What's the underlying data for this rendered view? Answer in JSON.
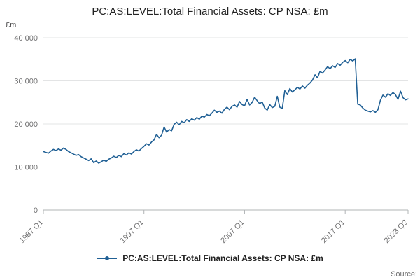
{
  "title": "PC:AS:LEVEL:Total Financial Assets: CP NSA: £m",
  "y_axis_unit_label": "£m",
  "source_label": "Source:",
  "legend": {
    "series_label": "PC:AS:LEVEL:Total Financial Assets: CP NSA: £m",
    "marker_color": "#206095"
  },
  "chart_data": {
    "type": "line",
    "title": "PC:AS:LEVEL:Total Financial Assets: CP NSA: £m",
    "xlabel": "",
    "ylabel": "£m",
    "ylim": [
      0,
      40000
    ],
    "grid": "horizontal",
    "legend_position": "bottom-center",
    "line_color": "#206095",
    "x_start": "1987 Q1",
    "x_end": "2023 Q2",
    "x_frequency": "quarterly",
    "y_ticks": [
      {
        "value": 0,
        "label": "0"
      },
      {
        "value": 10000,
        "label": "10 000"
      },
      {
        "value": 20000,
        "label": "20 000"
      },
      {
        "value": 30000,
        "label": "30 000"
      },
      {
        "value": 40000,
        "label": "40 000"
      }
    ],
    "x_ticks": [
      {
        "index": 0,
        "label": "1987 Q1"
      },
      {
        "index": 40,
        "label": "1997 Q1"
      },
      {
        "index": 80,
        "label": "2007 Q1"
      },
      {
        "index": 120,
        "label": "2017 Q1"
      },
      {
        "index": 145,
        "label": "2023 Q2"
      }
    ],
    "values": [
      13600,
      13400,
      13200,
      13700,
      14100,
      13800,
      14200,
      13900,
      14400,
      14100,
      13600,
      13300,
      13000,
      12700,
      12900,
      12400,
      12100,
      11800,
      11500,
      11900,
      11000,
      11400,
      10900,
      11200,
      11600,
      11300,
      11800,
      12100,
      12500,
      12200,
      12700,
      12400,
      13100,
      12800,
      13300,
      13000,
      13600,
      14000,
      13700,
      14300,
      14800,
      15400,
      15100,
      15800,
      16300,
      17600,
      16800,
      17400,
      19300,
      18100,
      18700,
      18400,
      19900,
      20400,
      19800,
      20600,
      20300,
      21000,
      20600,
      21200,
      20900,
      21500,
      21100,
      21800,
      21600,
      22200,
      21900,
      22500,
      23200,
      22700,
      23000,
      22500,
      23400,
      23900,
      23300,
      24100,
      24400,
      23900,
      25200,
      24500,
      24200,
      25700,
      24400,
      25000,
      26200,
      25400,
      24700,
      25100,
      23700,
      23200,
      24500,
      23800,
      24100,
      26400,
      23900,
      23600,
      27700,
      26800,
      28200,
      27400,
      27900,
      28500,
      28100,
      28800,
      28300,
      29000,
      29500,
      30200,
      31400,
      30700,
      32200,
      31800,
      32500,
      33300,
      32800,
      33500,
      33100,
      34000,
      33600,
      34300,
      34700,
      34200,
      35000,
      34600,
      35100,
      24600,
      24400,
      23700,
      23200,
      23000,
      22800,
      23100,
      22700,
      23300,
      25500,
      26700,
      26200,
      27000,
      26600,
      27300,
      26800,
      25700,
      27600,
      26100,
      25600,
      25800
    ]
  }
}
